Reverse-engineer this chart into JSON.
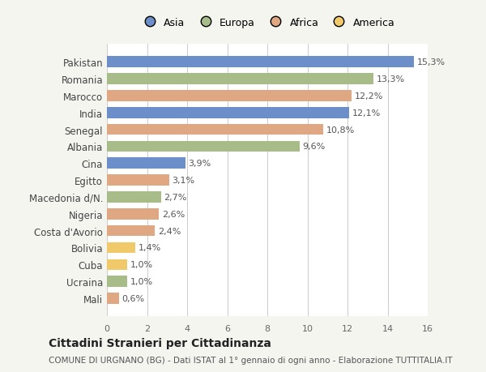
{
  "categories": [
    "Pakistan",
    "Romania",
    "Marocco",
    "India",
    "Senegal",
    "Albania",
    "Cina",
    "Egitto",
    "Macedonia d/N.",
    "Nigeria",
    "Costa d'Avorio",
    "Bolivia",
    "Cuba",
    "Ucraina",
    "Mali"
  ],
  "values": [
    15.3,
    13.3,
    12.2,
    12.1,
    10.8,
    9.6,
    3.9,
    3.1,
    2.7,
    2.6,
    2.4,
    1.4,
    1.0,
    1.0,
    0.6
  ],
  "labels": [
    "15,3%",
    "13,3%",
    "12,2%",
    "12,1%",
    "10,8%",
    "9,6%",
    "3,9%",
    "3,1%",
    "2,7%",
    "2,6%",
    "2,4%",
    "1,4%",
    "1,0%",
    "1,0%",
    "0,6%"
  ],
  "continents": [
    "Asia",
    "Europa",
    "Africa",
    "Asia",
    "Africa",
    "Europa",
    "Asia",
    "Africa",
    "Europa",
    "Africa",
    "Africa",
    "America",
    "America",
    "Europa",
    "Africa"
  ],
  "colors": {
    "Asia": "#6d8fc9",
    "Europa": "#a8bc8a",
    "Africa": "#e0a882",
    "America": "#f0c96a"
  },
  "legend_order": [
    "Asia",
    "Europa",
    "Africa",
    "America"
  ],
  "title": "Cittadini Stranieri per Cittadinanza",
  "subtitle": "COMUNE DI URGNANO (BG) - Dati ISTAT al 1° gennaio di ogni anno - Elaborazione TUTTITALIA.IT",
  "xlim": [
    0,
    16
  ],
  "xticks": [
    0,
    2,
    4,
    6,
    8,
    10,
    12,
    14,
    16
  ],
  "background_color": "#f5f5f0",
  "bar_background": "#ffffff"
}
